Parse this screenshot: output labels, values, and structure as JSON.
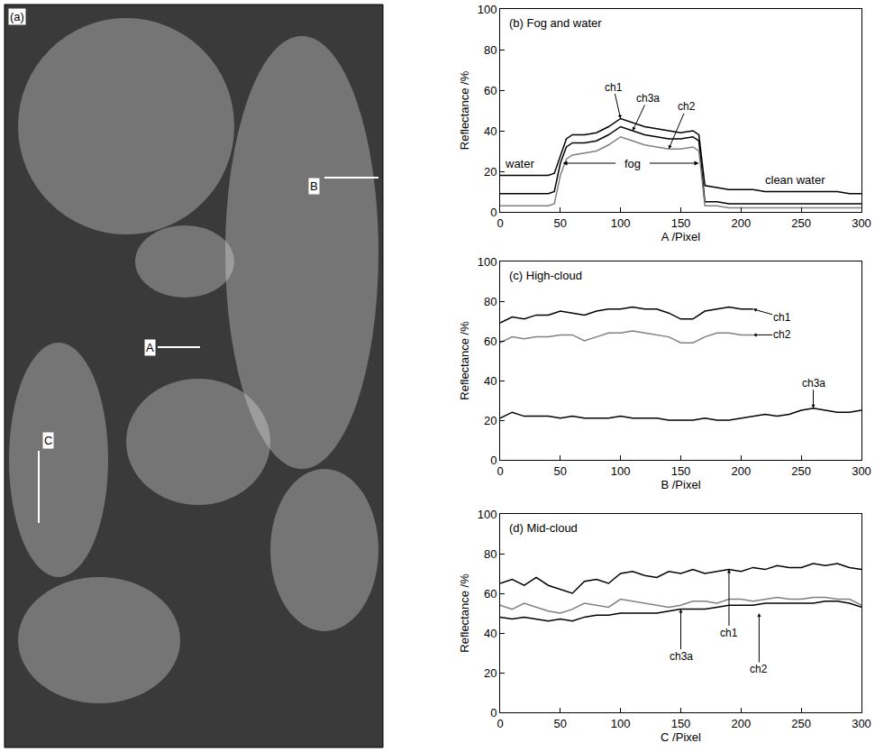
{
  "chart_data": [
    {
      "type": "image",
      "title": "(a)",
      "annotations": [
        "A",
        "B",
        "C"
      ]
    },
    {
      "type": "line",
      "title": "(b) Fog and water",
      "x_label": "A /Pixel",
      "y_label": "Reflectance /%",
      "x": [
        0,
        10,
        20,
        30,
        40,
        45,
        50,
        55,
        60,
        70,
        80,
        90,
        100,
        110,
        120,
        130,
        140,
        150,
        160,
        165,
        170,
        180,
        190,
        200,
        210,
        220,
        230,
        240,
        250,
        260,
        270,
        280,
        290,
        300
      ],
      "series": [
        {
          "name": "ch1",
          "color": "#000000",
          "values": [
            18,
            18,
            18,
            18,
            18,
            19,
            28,
            36,
            38,
            38,
            39,
            42,
            46,
            44,
            42,
            41,
            40,
            39,
            40,
            38,
            13,
            12,
            11,
            11,
            11,
            10,
            10,
            10,
            10,
            10,
            10,
            10,
            9,
            9
          ]
        },
        {
          "name": "ch3a",
          "color": "#000000",
          "values": [
            9,
            9,
            9,
            9,
            9,
            10,
            24,
            32,
            34,
            34,
            35,
            38,
            42,
            40,
            38,
            37,
            36,
            36,
            37,
            35,
            5,
            5,
            4,
            4,
            4,
            4,
            4,
            4,
            4,
            4,
            4,
            4,
            4,
            4
          ]
        },
        {
          "name": "ch2",
          "color": "#808080",
          "values": [
            3,
            3,
            3,
            3,
            3,
            4,
            18,
            26,
            28,
            29,
            30,
            33,
            37,
            35,
            33,
            32,
            31,
            31,
            32,
            30,
            3,
            3,
            2,
            2,
            2,
            2,
            2,
            2,
            2,
            2,
            2,
            2,
            2,
            2
          ]
        }
      ],
      "annotations": [
        "water",
        "fog",
        "clean water"
      ],
      "xlim": [
        0,
        300
      ],
      "xticks": [
        0,
        50,
        100,
        150,
        200,
        250,
        300
      ],
      "ylim": [
        0,
        100
      ],
      "yticks": [
        0,
        20,
        40,
        60,
        80,
        100
      ],
      "grid": false
    },
    {
      "type": "line",
      "title": "(c) High-cloud",
      "x_label": "B /Pixel",
      "y_label": "Reflectance /%",
      "x": [
        0,
        10,
        20,
        30,
        40,
        50,
        60,
        70,
        80,
        90,
        100,
        110,
        120,
        130,
        140,
        150,
        160,
        170,
        180,
        190,
        200,
        210,
        220,
        230,
        240,
        250,
        260,
        270,
        280,
        290,
        300
      ],
      "series": [
        {
          "name": "ch1",
          "color": "#000000",
          "values": [
            69,
            72,
            71,
            73,
            73,
            75,
            74,
            73,
            75,
            76,
            76,
            77,
            76,
            76,
            74,
            71,
            71,
            75,
            76,
            77,
            76,
            76,
            null,
            null,
            null,
            null,
            null,
            null,
            null,
            null,
            null
          ]
        },
        {
          "name": "ch2",
          "color": "#808080",
          "values": [
            59,
            62,
            61,
            62,
            62,
            63,
            63,
            60,
            62,
            64,
            64,
            65,
            64,
            63,
            62,
            59,
            59,
            62,
            64,
            64,
            63,
            63,
            null,
            null,
            null,
            null,
            null,
            null,
            null,
            null,
            null
          ]
        },
        {
          "name": "ch3a",
          "color": "#000000",
          "values": [
            21,
            24,
            22,
            22,
            22,
            21,
            22,
            21,
            21,
            21,
            22,
            21,
            21,
            21,
            20,
            20,
            20,
            21,
            20,
            20,
            21,
            22,
            23,
            22,
            23,
            25,
            26,
            25,
            24,
            24,
            25
          ]
        }
      ],
      "xlim": [
        0,
        300
      ],
      "xticks": [
        0,
        50,
        100,
        150,
        200,
        250,
        300
      ],
      "ylim": [
        0,
        100
      ],
      "yticks": [
        0,
        20,
        40,
        60,
        80,
        100
      ],
      "grid": false
    },
    {
      "type": "line",
      "title": "(d) Mid-cloud",
      "x_label": "C /Pixel",
      "y_label": "Reflectance /%",
      "x": [
        0,
        10,
        20,
        30,
        40,
        50,
        60,
        70,
        80,
        90,
        100,
        110,
        120,
        130,
        140,
        150,
        160,
        170,
        180,
        190,
        200,
        210,
        220,
        230,
        240,
        250,
        260,
        270,
        280,
        290,
        300
      ],
      "series": [
        {
          "name": "ch1",
          "color": "#000000",
          "values": [
            65,
            67,
            64,
            68,
            64,
            62,
            60,
            66,
            67,
            65,
            70,
            71,
            69,
            68,
            71,
            70,
            72,
            70,
            71,
            72,
            71,
            73,
            72,
            74,
            73,
            73,
            75,
            74,
            75,
            73,
            72
          ]
        },
        {
          "name": "ch2",
          "color": "#808080",
          "values": [
            54,
            52,
            55,
            53,
            51,
            50,
            52,
            55,
            54,
            53,
            57,
            56,
            55,
            54,
            53,
            54,
            56,
            56,
            55,
            57,
            57,
            56,
            57,
            58,
            57,
            57,
            58,
            58,
            57,
            57,
            54
          ]
        },
        {
          "name": "ch3a",
          "color": "#000000",
          "values": [
            48,
            47,
            48,
            47,
            46,
            47,
            46,
            48,
            49,
            49,
            50,
            50,
            50,
            50,
            51,
            52,
            52,
            52,
            53,
            54,
            54,
            54,
            55,
            55,
            55,
            55,
            55,
            56,
            56,
            55,
            53
          ]
        }
      ],
      "xlim": [
        0,
        300
      ],
      "xticks": [
        0,
        50,
        100,
        150,
        200,
        250,
        300
      ],
      "ylim": [
        0,
        100
      ],
      "yticks": [
        0,
        20,
        40,
        60,
        80,
        100
      ],
      "grid": false
    }
  ]
}
